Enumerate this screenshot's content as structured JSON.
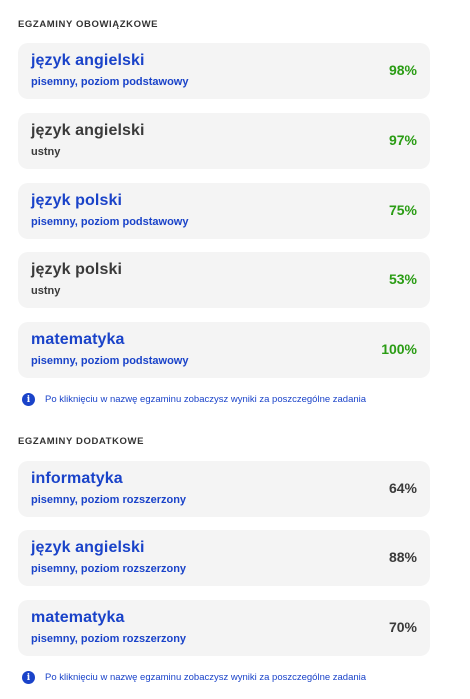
{
  "sections": [
    {
      "title": "EGZAMINY OBOWIĄZKOWE",
      "exams": [
        {
          "name": "język angielski",
          "detail": "pisemny, poziom podstawowy",
          "score": "98%"
        },
        {
          "name": "język angielski",
          "detail": "ustny",
          "score": "97%"
        },
        {
          "name": "język polski",
          "detail": "pisemny, poziom podstawowy",
          "score": "75%"
        },
        {
          "name": "język polski",
          "detail": "ustny",
          "score": "53%"
        },
        {
          "name": "matematyka",
          "detail": "pisemny, poziom podstawowy",
          "score": "100%"
        }
      ],
      "info": "Po kliknięciu w nazwę egzaminu zobaczysz wyniki za poszczególne zadania"
    },
    {
      "title": "EGZAMINY DODATKOWE",
      "exams": [
        {
          "name": "informatyka",
          "detail": "pisemny, poziom rozszerzony",
          "score": "64%"
        },
        {
          "name": "język angielski",
          "detail": "pisemny, poziom rozszerzony",
          "score": "88%"
        },
        {
          "name": "matematyka",
          "detail": "pisemny, poziom rozszerzony",
          "score": "70%"
        }
      ],
      "info": "Po kliknięciu w nazwę egzaminu zobaczysz wyniki za poszczególne zadania"
    }
  ],
  "icons": {
    "info": "info-icon"
  },
  "colors": {
    "link": "#1a43c9",
    "score_high": "#2a9c14",
    "text": "#3a3a3a",
    "card_bg": "#f4f4f4"
  }
}
